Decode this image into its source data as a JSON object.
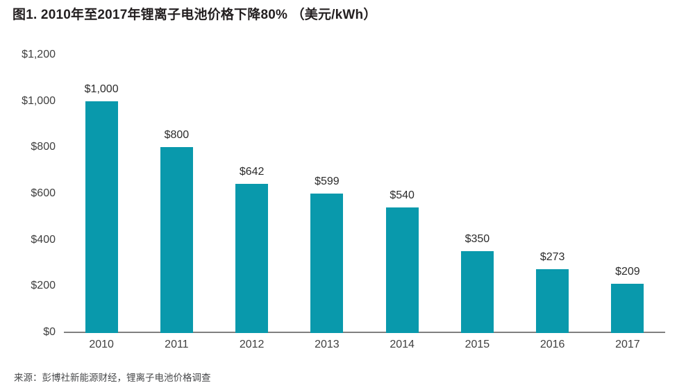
{
  "title": "图1. 2010年至2017年锂离子电池价格下降80% （美元/kWh）",
  "source": "来源：彭博社新能源财经，锂离子电池价格调查",
  "colors": {
    "bar": "#0999AC",
    "title_text": "#231F20",
    "axis_text": "#3F3F3F",
    "value_label_text": "#2B2B2B",
    "axis_line": "#808080",
    "source_text": "#47484A",
    "background": "#FFFFFF"
  },
  "chart_data": {
    "type": "bar",
    "title": "图1. 2010年至2017年锂离子电池价格下降80% （美元/kWh）",
    "categories": [
      "2010",
      "2011",
      "2012",
      "2013",
      "2014",
      "2015",
      "2016",
      "2017"
    ],
    "values": [
      1000,
      800,
      642,
      599,
      540,
      350,
      273,
      209
    ],
    "data_labels": [
      "$1,000",
      "$800",
      "$642",
      "$599",
      "$540",
      "$350",
      "$273",
      "$209"
    ],
    "xlabel": "",
    "ylabel": "美元/kWh",
    "ylim": [
      0,
      1200
    ],
    "ytick_values": [
      0,
      200,
      400,
      600,
      800,
      1000,
      1200
    ],
    "ytick_labels": [
      "$0",
      "$200",
      "$400",
      "$600",
      "$800",
      "$1,000",
      "$1,200"
    ],
    "grid": false,
    "legend": false,
    "source": "来源：彭博社新能源财经，锂离子电池价格调查"
  }
}
